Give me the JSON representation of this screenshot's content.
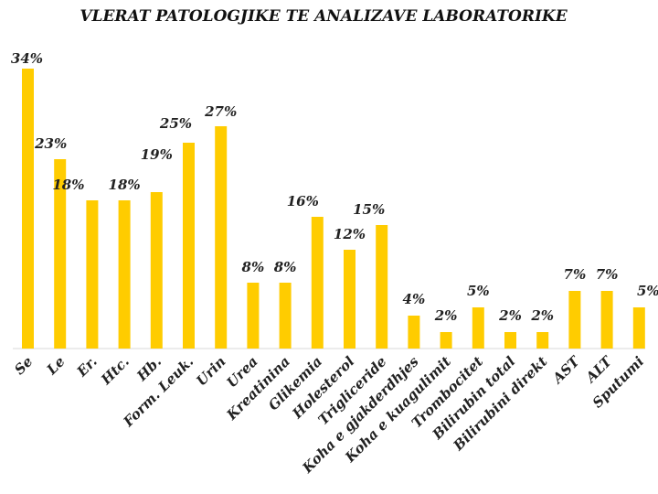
{
  "chart_data": {
    "type": "bar",
    "title": "VLERAT PATOLOGJIKE TE ANALIZAVE LABORATORIKE",
    "xlabel": "",
    "ylabel": "",
    "ylim": [
      0,
      34
    ],
    "grid": false,
    "legend": "none",
    "bar_color": "#FFCC00",
    "axis_color": "#D9D9D9",
    "categories": [
      "Se",
      "Le",
      "Er.",
      "Htc.",
      "Hb.",
      "Form. Leuk.",
      "Urin",
      "Urea",
      "Kreatinina",
      "Glikemia",
      "Holesterol",
      "Trigliceride",
      "Koha e gjakderdhjes",
      "Koha e kuagulimit",
      "Trombocitet",
      "Bilirubin total",
      "Bilirubini direkt",
      "AST",
      "ALT",
      "Sputumi"
    ],
    "values": [
      34,
      23,
      18,
      18,
      19,
      25,
      27,
      8,
      8,
      16,
      12,
      15,
      4,
      2,
      5,
      2,
      2,
      7,
      7,
      5
    ],
    "data_labels": [
      "34%",
      "23%",
      "18%",
      "18%",
      "19%",
      "25%",
      "27%",
      "8%",
      "8%",
      "16%",
      "12%",
      "15%",
      "4%",
      "2%",
      "5%",
      "2%",
      "2%",
      "7%",
      "7%",
      "5%"
    ]
  }
}
